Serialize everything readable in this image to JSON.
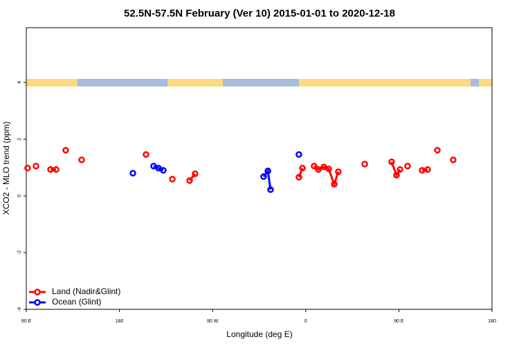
{
  "chart_data": {
    "type": "scatter",
    "title": "52.5N-57.5N February (Ver 10)   2015-01-01 to 2020-12-18",
    "x_label": "Longitude (deg E)",
    "y_label": "XCO2 - MLO trend (ppm)",
    "xlim": [
      90,
      540
    ],
    "xticks": [
      {
        "value": 90,
        "label": "90 E"
      },
      180,
      {
        "value": 270,
        "label": "90 W"
      },
      {
        "value": 360,
        "label": "0"
      },
      {
        "value": 450,
        "label": "90 E"
      },
      {
        "value": 540,
        "label": "180"
      }
    ],
    "ylim": [
      -4,
      5.93
    ],
    "yticks": [
      -4,
      -2,
      0,
      2,
      4
    ],
    "legend": "bottom-left",
    "series": [
      {
        "name": "Land (Nadir&Glint)",
        "color": "#ff0000",
        "x": [
          91.3,
          null,
          99.4,
          null,
          113.4,
          118.8,
          null,
          128.1,
          null,
          143.5,
          null,
          205.7,
          null,
          231.1,
          null,
          247.8,
          253.1,
          null,
          353.4,
          356.8,
          null,
          368.1,
          372.2,
          377.5,
          382.2,
          387.5,
          391.5,
          null,
          417.0,
          null,
          443.0,
          447.7,
          451.1,
          null,
          458.4,
          null,
          472.5,
          477.8,
          null,
          487.2,
          null,
          502.5
        ],
        "values": [
          0.98,
          null,
          1.05,
          null,
          0.93,
          0.93,
          null,
          1.61,
          null,
          1.27,
          null,
          1.46,
          null,
          0.59,
          null,
          0.54,
          0.78,
          null,
          0.66,
          0.98,
          null,
          1.05,
          0.93,
          1.02,
          0.95,
          0.41,
          0.85,
          null,
          1.12,
          null,
          1.2,
          0.73,
          0.93,
          null,
          1.05,
          null,
          0.9,
          0.93,
          null,
          1.61,
          null,
          1.27
        ]
      },
      {
        "name": "Ocean (Glint)",
        "color": "#0000ff",
        "x": [
          193.0,
          null,
          213.0,
          217.7,
          222.4,
          null,
          319.3,
          323.4,
          326.0,
          null,
          353.4
        ],
        "values": [
          0.8,
          null,
          1.05,
          0.98,
          0.9,
          null,
          0.68,
          0.88,
          0.22,
          null,
          1.46
        ]
      }
    ]
  }
}
